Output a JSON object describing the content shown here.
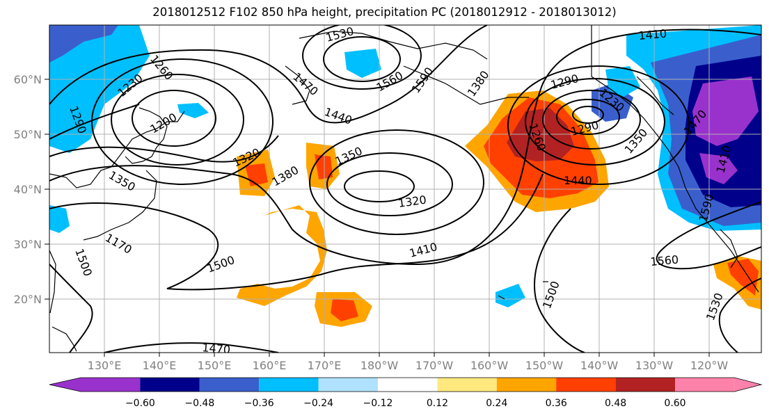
{
  "title": "2018012512 F102 850 hPa height, precipitation PC (2018012912 - 2018013012)",
  "lat_labels": [
    "60°N",
    "50°N",
    "40°N",
    "30°N",
    "20°N"
  ],
  "lon_labels": [
    "130°E",
    "140°E",
    "150°E",
    "160°E",
    "170°E",
    "180°W",
    "170°W",
    "160°W",
    "150°W",
    "140°W",
    "130°W",
    "120°W"
  ],
  "contour_labels": [
    "1260",
    "1230",
    "1290",
    "1200",
    "1350",
    "1320",
    "1380",
    "1350",
    "1320",
    "1410",
    "1500",
    "1470",
    "1440",
    "1470",
    "1530",
    "1560",
    "1590",
    "1380",
    "1290",
    "1260",
    "1290",
    "1230",
    "1350",
    "1440",
    "1410",
    "1590",
    "1560",
    "1530",
    "1500",
    "1170",
    "1500",
    "1470",
    "1410"
  ],
  "colorbar": {
    "ticks": [
      "−0.60",
      "−0.48",
      "−0.36",
      "−0.24",
      "−0.12",
      "0.12",
      "0.24",
      "0.36",
      "0.48",
      "0.60"
    ],
    "colors": [
      "#9932CC",
      "#00008B",
      "#3A5FCD",
      "#00BFFF",
      "#B0E2FF",
      "#FFFFFF",
      "#FFE97F",
      "#FFA500",
      "#FF4000",
      "#B22222",
      "#FF82AB"
    ]
  },
  "colors": {
    "coast": "#000000",
    "contour": "#000000",
    "grid": "#b0b0b0"
  }
}
